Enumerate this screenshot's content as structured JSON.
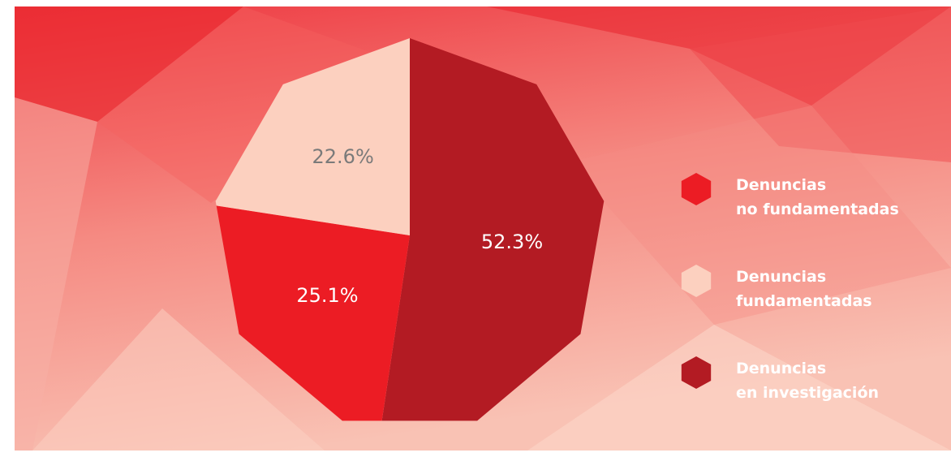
{
  "chart_data": {
    "type": "pie",
    "categories": [
      "Denuncias\nen investigación",
      "Denuncias\nno fundamentadas",
      "Denuncias\nfundamentadas"
    ],
    "values": [
      52.3,
      25.1,
      22.6
    ],
    "value_labels": [
      "52.3%",
      "25.1%",
      "22.6%"
    ],
    "colors": [
      "#b31b23",
      "#ec1c24",
      "#fcd0bf"
    ],
    "legend_order": [
      1,
      2,
      0
    ],
    "legend": "right"
  }
}
